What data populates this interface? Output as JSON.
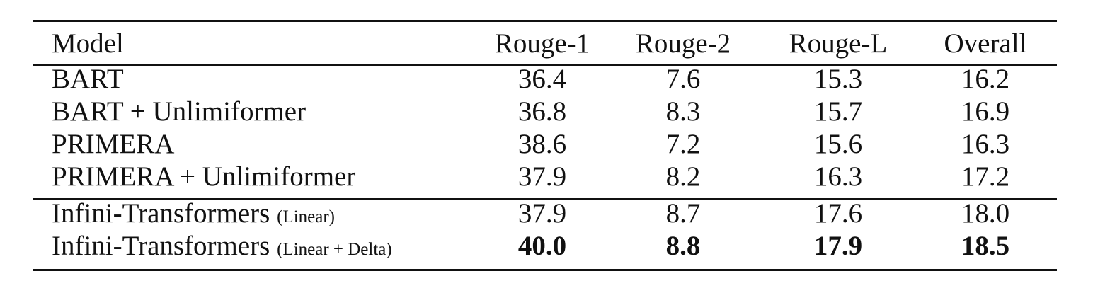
{
  "table": {
    "headers": {
      "model": "Model",
      "rouge1": "Rouge-1",
      "rouge2": "Rouge-2",
      "rougeL": "Rouge-L",
      "overall": "Overall"
    },
    "rows": [
      {
        "model": "BART",
        "suffix": "",
        "rouge1": "36.4",
        "rouge2": "7.6",
        "rougeL": "15.3",
        "overall": "16.2"
      },
      {
        "model": "BART + Unlimiformer",
        "suffix": "",
        "rouge1": "36.8",
        "rouge2": "8.3",
        "rougeL": "15.7",
        "overall": "16.9"
      },
      {
        "model": "PRIMERA",
        "suffix": "",
        "rouge1": "38.6",
        "rouge2": "7.2",
        "rougeL": "15.6",
        "overall": "16.3"
      },
      {
        "model": "PRIMERA + Unlimiformer",
        "suffix": "",
        "rouge1": "37.9",
        "rouge2": "8.2",
        "rougeL": "16.3",
        "overall": "17.2"
      },
      {
        "model": "Infini-Transformers",
        "suffix": "(Linear)",
        "rouge1": "37.9",
        "rouge2": "8.7",
        "rougeL": "17.6",
        "overall": "18.0"
      },
      {
        "model": "Infini-Transformers",
        "suffix": "(Linear + Delta)",
        "rouge1": "40.0",
        "rouge2": "8.8",
        "rougeL": "17.9",
        "overall": "18.5",
        "bold_values": true
      }
    ]
  }
}
